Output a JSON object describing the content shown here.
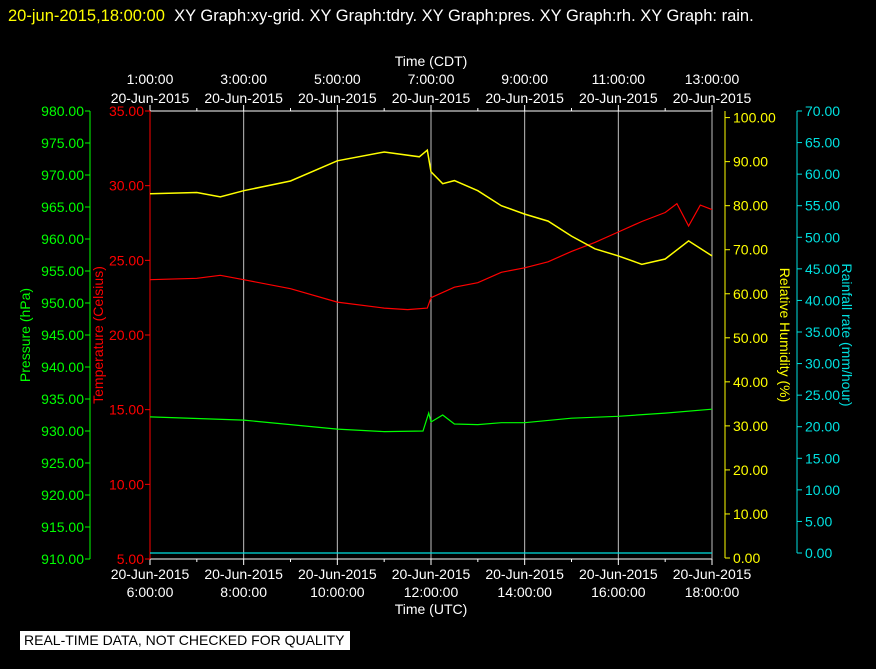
{
  "header": {
    "timestamp": "20-jun-2015,18:00:00",
    "graphs_text": "XY Graph:xy-grid.  XY Graph:tdry.  XY Graph:pres.  XY Graph:rh.  XY Graph: rain."
  },
  "footer": {
    "quality_note": "REAL-TIME DATA, NOT CHECKED FOR QUALITY"
  },
  "colors": {
    "pressure": "#00ff00",
    "temperature": "#ff0000",
    "rh": "#ffff00",
    "rain": "#00e0e0",
    "grid": "#c0c0c0"
  },
  "chart_data": {
    "type": "line",
    "x_unit": "hours UTC on 20-Jun-2015",
    "xlim": [
      6,
      18
    ],
    "x_bottom": {
      "title": "Time (UTC)",
      "ticks": [
        {
          "value": 6,
          "date": "20-Jun-2015",
          "time": "6:00:00"
        },
        {
          "value": 8,
          "date": "20-Jun-2015",
          "time": "8:00:00"
        },
        {
          "value": 10,
          "date": "20-Jun-2015",
          "time": "10:00:00"
        },
        {
          "value": 12,
          "date": "20-Jun-2015",
          "time": "12:00:00"
        },
        {
          "value": 14,
          "date": "20-Jun-2015",
          "time": "14:00:00"
        },
        {
          "value": 16,
          "date": "20-Jun-2015",
          "time": "16:00:00"
        },
        {
          "value": 18,
          "date": "20-Jun-2015",
          "time": "18:00:00"
        }
      ]
    },
    "x_top": {
      "title": "Time (CDT)",
      "ticks": [
        {
          "value": 6,
          "time": "1:00:00",
          "date": "20-Jun-2015"
        },
        {
          "value": 8,
          "time": "3:00:00",
          "date": "20-Jun-2015"
        },
        {
          "value": 10,
          "time": "5:00:00",
          "date": "20-Jun-2015"
        },
        {
          "value": 12,
          "time": "7:00:00",
          "date": "20-Jun-2015"
        },
        {
          "value": 14,
          "time": "9:00:00",
          "date": "20-Jun-2015"
        },
        {
          "value": 16,
          "time": "11:00:00",
          "date": "20-Jun-2015"
        },
        {
          "value": 18,
          "time": "13:00:00",
          "date": "20-Jun-2015"
        }
      ]
    },
    "grid": true,
    "axes": {
      "pressure": {
        "label": "Pressure (hPa)",
        "ylim": [
          910,
          980
        ],
        "step": 5,
        "ticks": [
          "910.00",
          "915.00",
          "920.00",
          "925.00",
          "930.00",
          "935.00",
          "940.00",
          "945.00",
          "950.00",
          "955.00",
          "960.00",
          "965.00",
          "970.00",
          "975.00",
          "980.00"
        ]
      },
      "temperature": {
        "label": "Temperature (Celsius)",
        "ylim": [
          5,
          35
        ],
        "step": 5,
        "ticks": [
          "5.00",
          "10.00",
          "15.00",
          "20.00",
          "25.00",
          "30.00",
          "35.00"
        ]
      },
      "rh": {
        "label": "Relative Humidity (%)",
        "ylim": [
          0,
          101.5
        ],
        "step": 10,
        "ticks": [
          "0.00",
          "10.00",
          "20.00",
          "30.00",
          "40.00",
          "50.00",
          "60.00",
          "70.00",
          "80.00",
          "90.00",
          "100.00"
        ]
      },
      "rain": {
        "label": "Rainfall rate (mm/hour)",
        "ylim": [
          0,
          70
        ],
        "step": 5,
        "ticks": [
          "0.00",
          "5.00",
          "10.00",
          "15.00",
          "20.00",
          "25.00",
          "30.00",
          "35.00",
          "40.00",
          "45.00",
          "50.00",
          "55.00",
          "60.00",
          "65.00",
          "70.00"
        ]
      }
    },
    "series": [
      {
        "name": "tdry",
        "axis": "temperature",
        "x": [
          6,
          7,
          7.5,
          8,
          9,
          10,
          11,
          11.5,
          11.92,
          12,
          12.5,
          13,
          13.5,
          14,
          14.5,
          15,
          15.5,
          16,
          16.5,
          17,
          17.25,
          17.5,
          17.75,
          18
        ],
        "y": [
          23.7,
          23.8,
          24.0,
          23.7,
          23.1,
          22.2,
          21.8,
          21.7,
          21.8,
          22.5,
          23.2,
          23.5,
          24.2,
          24.5,
          24.9,
          25.6,
          26.2,
          26.9,
          27.6,
          28.2,
          28.8,
          27.3,
          28.7,
          28.4
        ]
      },
      {
        "name": "rh",
        "axis": "rh",
        "x": [
          6,
          7,
          7.5,
          8,
          9,
          10,
          11,
          11.75,
          11.92,
          12,
          12.25,
          12.5,
          13,
          13.5,
          14,
          14.5,
          15,
          15.5,
          16,
          16.5,
          17,
          17.5,
          18
        ],
        "y": [
          82.7,
          83.0,
          82.0,
          83.4,
          85.6,
          90.2,
          92.2,
          91.1,
          92.6,
          87.7,
          85.0,
          85.7,
          83.4,
          80.0,
          78.1,
          76.5,
          73.1,
          70.2,
          68.6,
          66.7,
          67.9,
          72.0,
          68.6
        ]
      },
      {
        "name": "pres",
        "axis": "pressure",
        "x": [
          6,
          8,
          10,
          11,
          11.83,
          11.95,
          12,
          12.25,
          12.5,
          13,
          13.5,
          14,
          15,
          16,
          17,
          18
        ],
        "y": [
          932.2,
          931.7,
          930.3,
          929.9,
          930.0,
          932.8,
          931.4,
          932.5,
          931.1,
          931.0,
          931.3,
          931.3,
          932.0,
          932.3,
          932.8,
          933.4
        ]
      },
      {
        "name": "rain",
        "axis": "rain",
        "x": [
          6,
          18
        ],
        "y": [
          0,
          0
        ]
      }
    ]
  }
}
